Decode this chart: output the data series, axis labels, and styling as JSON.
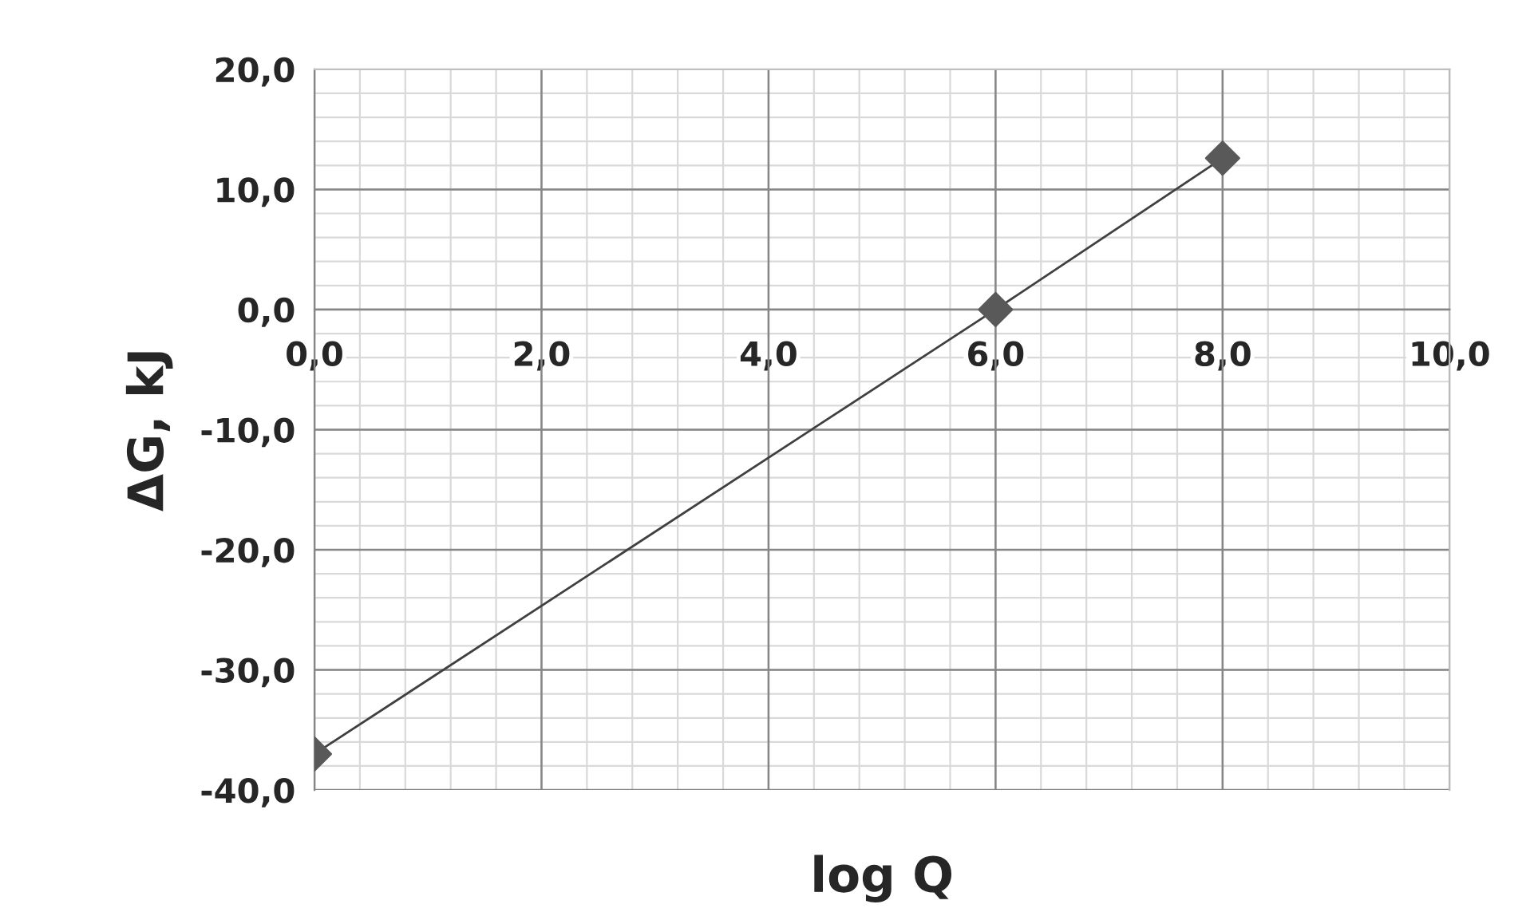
{
  "chart_data": {
    "type": "line",
    "xlabel": "log Q",
    "ylabel": "ΔG, kJ",
    "x": [
      0,
      6,
      8
    ],
    "series": [
      {
        "color": "#595959",
        "values": [
          -37,
          0,
          12.6
        ]
      }
    ],
    "marker": "diamond",
    "line_style": "solid",
    "grid": true,
    "legend": false,
    "xlim": [
      0,
      10
    ],
    "ylim": [
      -40,
      20
    ],
    "xticks": [
      {
        "value": 0,
        "label": "0,0"
      },
      {
        "value": 2,
        "label": "2,0"
      },
      {
        "value": 4,
        "label": "4,0"
      },
      {
        "value": 6,
        "label": "6,0"
      },
      {
        "value": 8,
        "label": "8,0"
      },
      {
        "value": 10,
        "label": "10,0"
      }
    ],
    "yticks": [
      {
        "value": -40,
        "label": "-40,0"
      },
      {
        "value": -30,
        "label": "-30,0"
      },
      {
        "value": -20,
        "label": "-20,0"
      },
      {
        "value": -10,
        "label": "-10,0"
      },
      {
        "value": 0,
        "label": "0,0"
      },
      {
        "value": 10,
        "label": "10,0"
      },
      {
        "value": 20,
        "label": "20,0"
      }
    ]
  }
}
